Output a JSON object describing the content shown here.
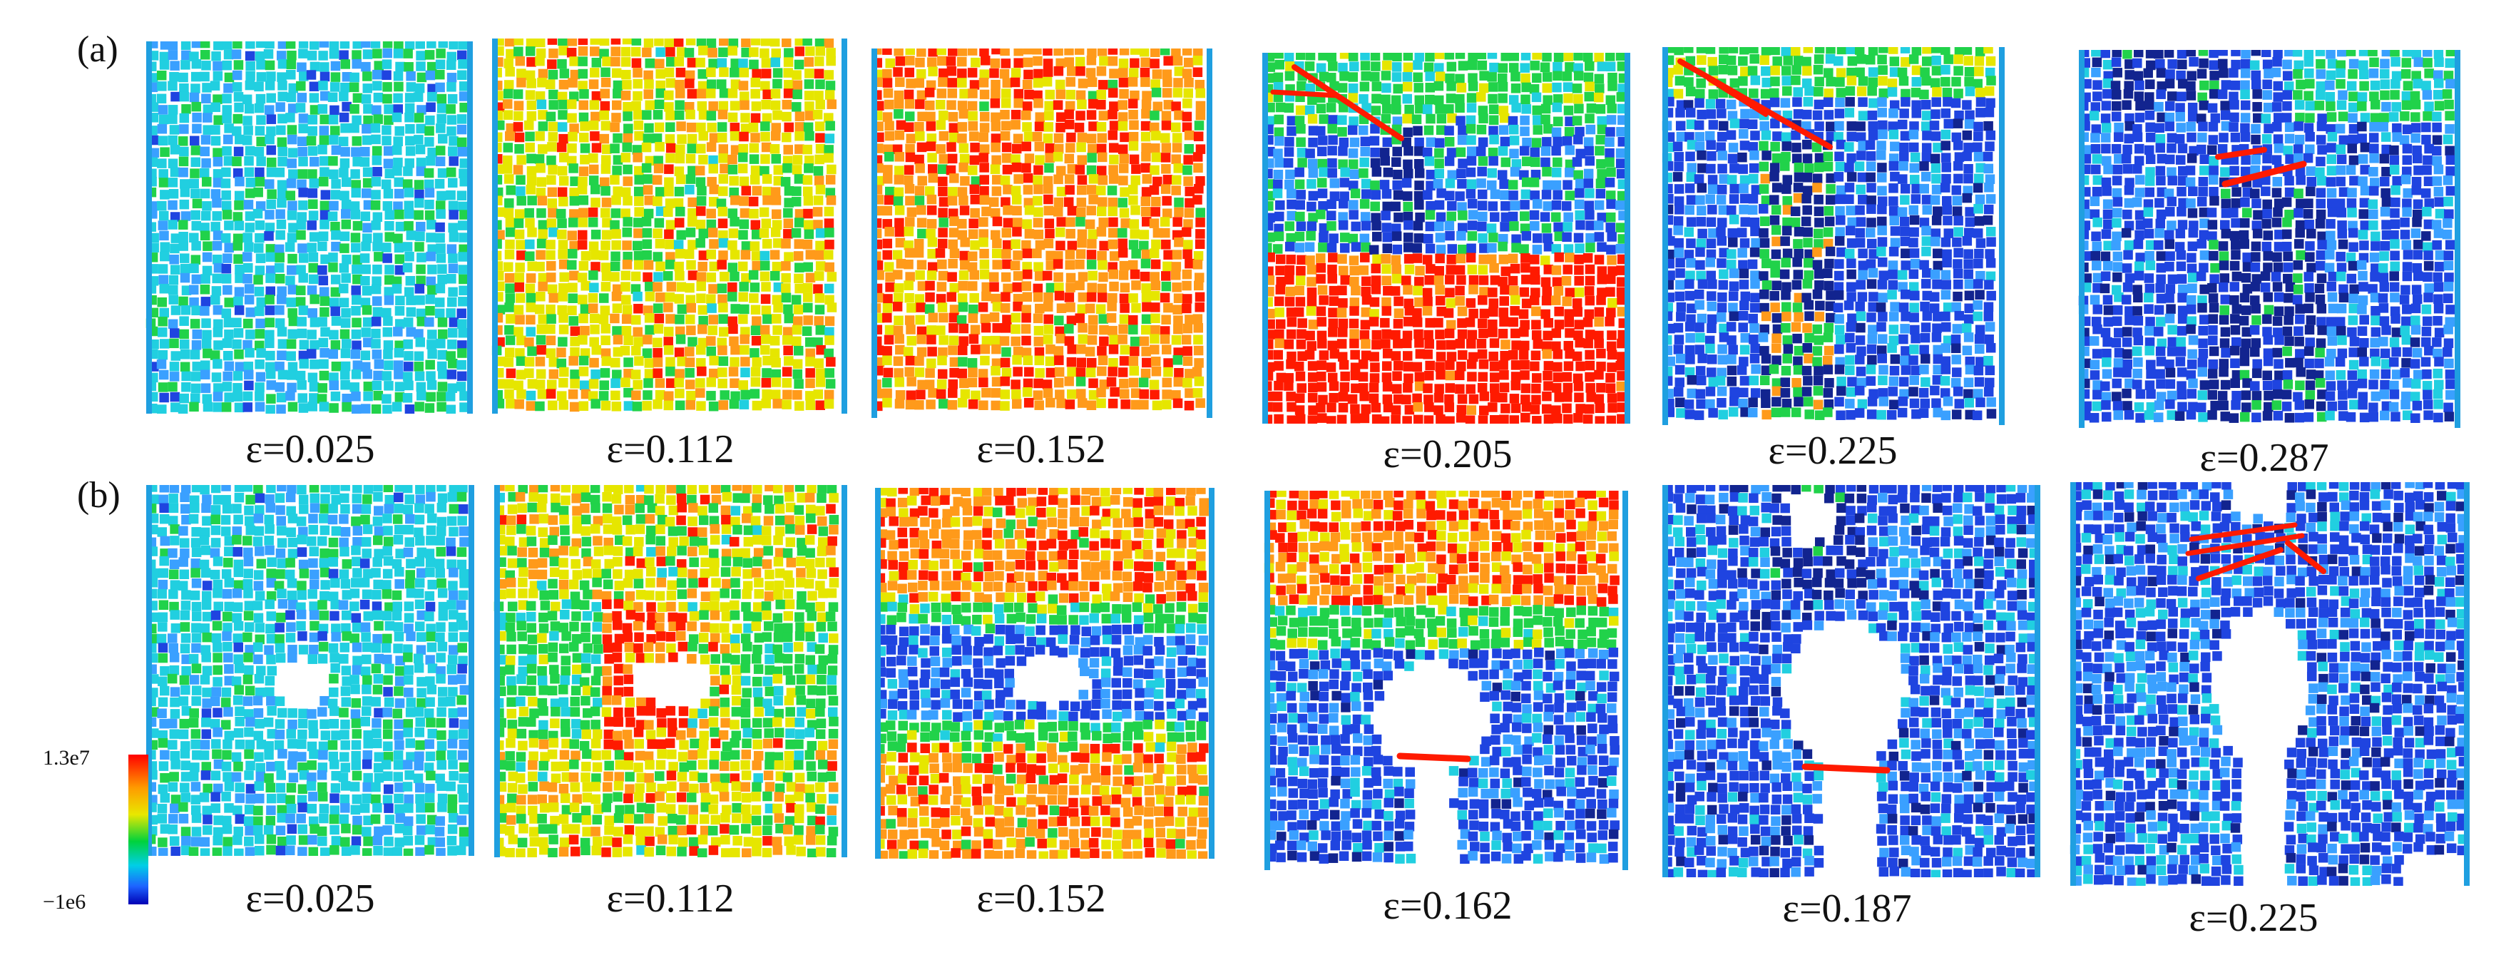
{
  "row_labels": [
    "(a)",
    "(b)"
  ],
  "colorbar": {
    "max_label": "1.3e7",
    "min_label": "−1e6",
    "gradient": [
      "#ff0000",
      "#ff9a00",
      "#e8e800",
      "#00d23c",
      "#00cfe6",
      "#1d63ff",
      "#0000b4"
    ]
  },
  "palette": {
    "red": "#ff1a00",
    "orange": "#ff9a1a",
    "yellow": "#e6e600",
    "green": "#21d24a",
    "cyan": "#21cfe0",
    "lightblue": "#3aa0ff",
    "blue": "#1f44e0",
    "navy": "#12248f",
    "border": "#1f9fe0"
  },
  "rows": [
    {
      "label": "(a)",
      "panels": [
        {
          "strain": "ε=0.025",
          "base": "cyan"
        },
        {
          "strain": "ε=0.112",
          "base": "yellow"
        },
        {
          "strain": "ε=0.152",
          "base": "orange"
        },
        {
          "strain": "ε=0.205",
          "base": "green"
        },
        {
          "strain": "ε=0.225",
          "base": "blue"
        },
        {
          "strain": "ε=0.287",
          "base": "blue"
        }
      ]
    },
    {
      "label": "(b)",
      "panels": [
        {
          "strain": "ε=0.025",
          "base": "cyan"
        },
        {
          "strain": "ε=0.112",
          "base": "yellow"
        },
        {
          "strain": "ε=0.152",
          "base": "orange"
        },
        {
          "strain": "ε=0.162",
          "base": "blue"
        },
        {
          "strain": "ε=0.187",
          "base": "blue"
        },
        {
          "strain": "ε=0.225",
          "base": "blue"
        }
      ]
    }
  ]
}
